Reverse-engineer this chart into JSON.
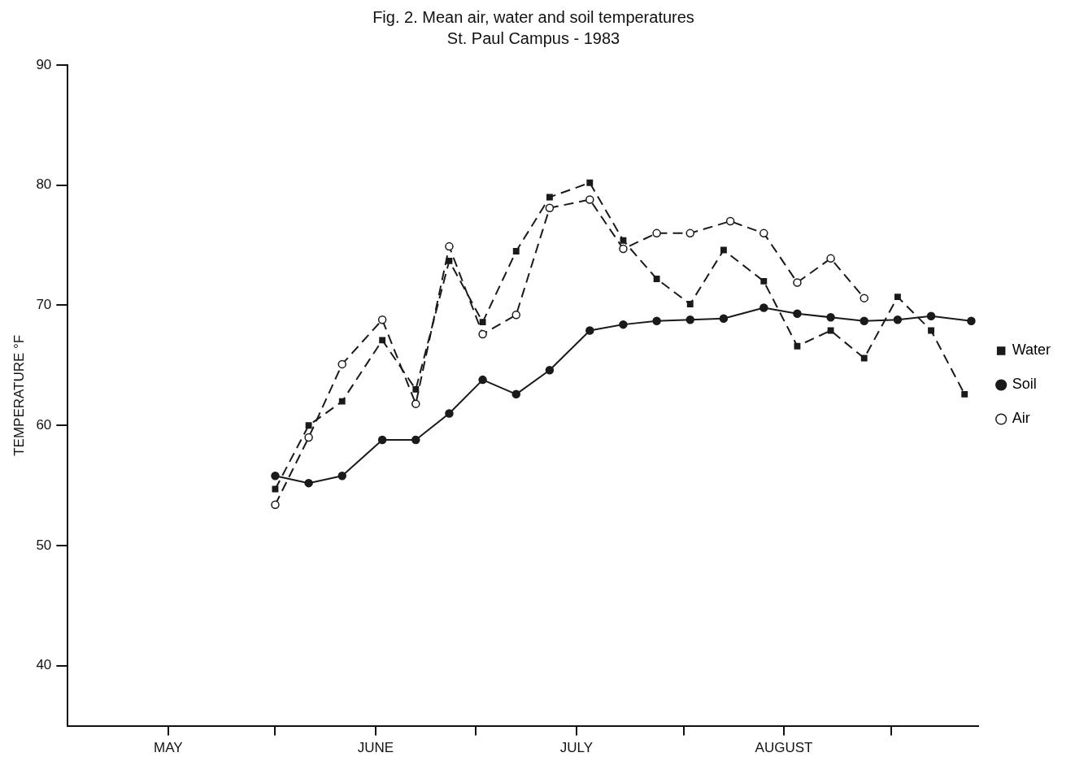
{
  "chart_data": {
    "type": "line",
    "title": "Fig. 2. Mean air, water and soil temperatures",
    "subtitle": "St. Paul Campus - 1983",
    "ylabel": "TEMPERATURE °F",
    "xlim": [
      "--05-01",
      "--09-14"
    ],
    "xticks": [
      {
        "value": "--05-16",
        "label": "MAY"
      },
      {
        "value": "--06-01",
        "label": null
      },
      {
        "value": "--06-16",
        "label": "JUNE"
      },
      {
        "value": "--07-01",
        "label": null
      },
      {
        "value": "--07-16",
        "label": "JULY"
      },
      {
        "value": "--08-01",
        "label": null
      },
      {
        "value": "--08-16",
        "label": "AUGUST"
      },
      {
        "value": "--09-01",
        "label": null
      }
    ],
    "ylim": [
      35,
      90
    ],
    "yticks": [
      40,
      50,
      60,
      70,
      80,
      90
    ],
    "grid": false,
    "legend": "right",
    "series": [
      {
        "name": "Water",
        "color": "#1a1a1a",
        "marker": "square",
        "line_style": "dashed",
        "x": [
          "--06-01",
          "--06-06",
          "--06-11",
          "--06-17",
          "--06-22",
          "--06-27",
          "--07-02",
          "--07-07",
          "--07-12",
          "--07-18",
          "--07-23",
          "--07-28",
          "--08-02",
          "--08-07",
          "--08-13",
          "--08-18",
          "--08-23",
          "--08-28",
          "--09-02",
          "--09-07",
          "--09-12"
        ],
        "values": [
          54.7,
          60.0,
          62.0,
          67.1,
          63.0,
          73.7,
          68.6,
          74.5,
          79.0,
          80.2,
          75.4,
          72.2,
          70.1,
          74.6,
          72.0,
          66.6,
          67.9,
          65.6,
          70.7,
          67.9,
          62.6
        ]
      },
      {
        "name": "Soil",
        "color": "#1a1a1a",
        "marker": "circle",
        "line_style": "solid",
        "x": [
          "--06-01",
          "--06-06",
          "--06-11",
          "--06-17",
          "--06-22",
          "--06-27",
          "--07-02",
          "--07-07",
          "--07-12",
          "--07-18",
          "--07-23",
          "--07-28",
          "--08-02",
          "--08-07",
          "--08-13",
          "--08-18",
          "--08-23",
          "--08-28",
          "--09-02",
          "--09-07",
          "--09-13"
        ],
        "values": [
          55.8,
          55.2,
          55.8,
          58.8,
          58.8,
          61.0,
          63.8,
          62.6,
          64.6,
          67.9,
          68.4,
          68.7,
          68.8,
          68.9,
          69.8,
          69.3,
          69.0,
          68.7,
          68.8,
          69.1,
          68.7
        ]
      },
      {
        "name": "Air",
        "color": "#1a1a1a",
        "marker": "open_circle",
        "line_style": "dashed",
        "x": [
          "--06-01",
          "--06-06",
          "--06-11",
          "--06-17",
          "--06-22",
          "--06-27",
          "--07-02",
          "--07-07",
          "--07-12",
          "--07-18",
          "--07-23",
          "--07-28",
          "--08-02",
          "--08-08",
          "--08-13",
          "--08-18",
          "--08-23",
          "--08-28"
        ],
        "values": [
          53.4,
          59.0,
          65.1,
          68.8,
          61.8,
          74.9,
          67.6,
          69.2,
          78.1,
          78.8,
          74.7,
          76.0,
          76.0,
          77.0,
          76.0,
          71.9,
          73.9,
          70.6
        ]
      }
    ]
  }
}
